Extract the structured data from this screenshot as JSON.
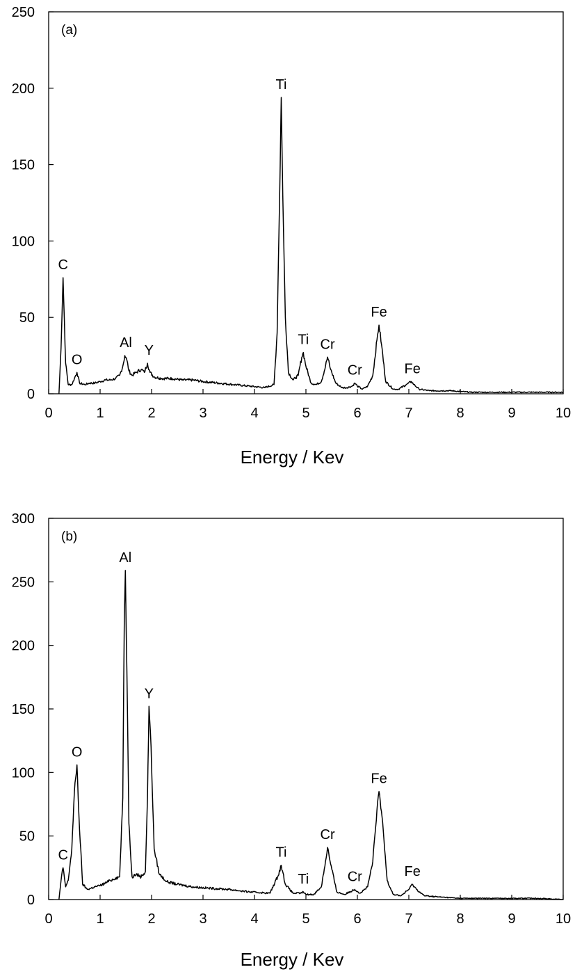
{
  "chart_data": [
    {
      "type": "line",
      "panel_label": "(a)",
      "xlabel": "Energy / Kev",
      "ylabel": "",
      "xlim": [
        0,
        10
      ],
      "ylim": [
        0,
        250
      ],
      "xticks": [
        0,
        1,
        2,
        3,
        4,
        5,
        6,
        7,
        8,
        9,
        10
      ],
      "yticks": [
        0,
        50,
        100,
        150,
        200,
        250
      ],
      "grid": false,
      "peaks": [
        {
          "label": "C",
          "x": 0.28,
          "y": 76
        },
        {
          "label": "O",
          "x": 0.55,
          "y": 14
        },
        {
          "label": "Al",
          "x": 1.5,
          "y": 25
        },
        {
          "label": "Y",
          "x": 1.95,
          "y": 20
        },
        {
          "label": "Ti",
          "x": 4.52,
          "y": 194
        },
        {
          "label": "Ti",
          "x": 4.95,
          "y": 27
        },
        {
          "label": "Cr",
          "x": 5.42,
          "y": 24
        },
        {
          "label": "Cr",
          "x": 5.95,
          "y": 7
        },
        {
          "label": "Fe",
          "x": 6.42,
          "y": 45
        },
        {
          "label": "Fe",
          "x": 7.07,
          "y": 8
        }
      ],
      "series": [
        {
          "x": [
            0.2,
            0.24,
            0.28,
            0.33,
            0.38,
            0.45,
            0.5,
            0.55,
            0.6,
            0.7,
            0.8,
            0.9,
            1.0,
            1.1,
            1.2,
            1.3,
            1.38,
            1.44,
            1.48,
            1.52,
            1.56,
            1.62,
            1.7,
            1.8,
            1.86,
            1.92,
            1.97,
            2.05,
            2.2,
            2.4,
            2.6,
            2.8,
            3.0,
            3.3,
            3.6,
            3.9,
            4.2,
            4.38,
            4.44,
            4.5,
            4.52,
            4.55,
            4.6,
            4.66,
            4.75,
            4.85,
            4.92,
            4.95,
            5.0,
            5.1,
            5.2,
            5.3,
            5.38,
            5.42,
            5.48,
            5.58,
            5.7,
            5.8,
            5.9,
            5.95,
            6.0,
            6.1,
            6.2,
            6.3,
            6.38,
            6.42,
            6.47,
            6.55,
            6.7,
            6.8,
            6.95,
            7.05,
            7.1,
            7.2,
            7.4,
            7.8,
            8.2,
            8.6,
            9.0,
            9.4,
            9.8,
            10.0
          ],
          "y": [
            0,
            30,
            76,
            20,
            6,
            6,
            10,
            14,
            7,
            6,
            7,
            7,
            8,
            9,
            9,
            10,
            12,
            18,
            25,
            22,
            15,
            12,
            14,
            16,
            14,
            20,
            14,
            11,
            10,
            10,
            9,
            9,
            8,
            7,
            6,
            5,
            4,
            6,
            40,
            150,
            194,
            130,
            50,
            14,
            9,
            12,
            24,
            27,
            18,
            7,
            6,
            8,
            18,
            24,
            16,
            7,
            4,
            4,
            5,
            7,
            5,
            3,
            5,
            12,
            35,
            45,
            32,
            8,
            3,
            3,
            6,
            8,
            6,
            3,
            2,
            2,
            1,
            1,
            1,
            1,
            1,
            1
          ]
        }
      ]
    },
    {
      "type": "line",
      "panel_label": "(b)",
      "xlabel": "Energy / Kev",
      "ylabel": "",
      "xlim": [
        0,
        10
      ],
      "ylim": [
        0,
        300
      ],
      "xticks": [
        0,
        1,
        2,
        3,
        4,
        5,
        6,
        7,
        8,
        9,
        10
      ],
      "yticks": [
        0,
        50,
        100,
        150,
        200,
        250,
        300
      ],
      "grid": false,
      "peaks": [
        {
          "label": "C",
          "x": 0.28,
          "y": 25
        },
        {
          "label": "O",
          "x": 0.55,
          "y": 106
        },
        {
          "label": "Al",
          "x": 1.49,
          "y": 259
        },
        {
          "label": "Y",
          "x": 1.95,
          "y": 152
        },
        {
          "label": "Ti",
          "x": 4.52,
          "y": 27
        },
        {
          "label": "Ti",
          "x": 4.95,
          "y": 6
        },
        {
          "label": "Cr",
          "x": 5.42,
          "y": 41
        },
        {
          "label": "Cr",
          "x": 5.95,
          "y": 8
        },
        {
          "label": "Fe",
          "x": 6.42,
          "y": 85
        },
        {
          "label": "Fe",
          "x": 7.07,
          "y": 12
        }
      ],
      "series": [
        {
          "x": [
            0.2,
            0.24,
            0.28,
            0.33,
            0.38,
            0.45,
            0.5,
            0.55,
            0.6,
            0.66,
            0.75,
            0.9,
            1.0,
            1.1,
            1.2,
            1.3,
            1.38,
            1.44,
            1.47,
            1.49,
            1.52,
            1.56,
            1.62,
            1.7,
            1.8,
            1.88,
            1.92,
            1.95,
            1.99,
            2.05,
            2.15,
            2.3,
            2.5,
            2.8,
            3.1,
            3.5,
            3.9,
            4.3,
            4.45,
            4.52,
            4.6,
            4.75,
            4.9,
            4.95,
            5.0,
            5.15,
            5.3,
            5.38,
            5.42,
            5.48,
            5.6,
            5.75,
            5.9,
            5.95,
            6.05,
            6.2,
            6.3,
            6.38,
            6.42,
            6.48,
            6.58,
            6.7,
            6.85,
            7.0,
            7.07,
            7.15,
            7.3,
            7.6,
            8.0,
            8.5,
            9.0,
            9.5,
            10.0
          ],
          "y": [
            0,
            15,
            25,
            10,
            15,
            40,
            85,
            106,
            55,
            12,
            8,
            10,
            11,
            13,
            15,
            17,
            18,
            80,
            220,
            259,
            180,
            60,
            18,
            20,
            18,
            22,
            80,
            152,
            120,
            40,
            20,
            14,
            12,
            10,
            9,
            8,
            6,
            5,
            18,
            27,
            12,
            5,
            5,
            6,
            4,
            4,
            10,
            30,
            41,
            28,
            6,
            4,
            7,
            8,
            5,
            10,
            30,
            70,
            85,
            65,
            15,
            4,
            3,
            8,
            12,
            8,
            3,
            2,
            1,
            1,
            1,
            1,
            0
          ]
        }
      ]
    }
  ]
}
